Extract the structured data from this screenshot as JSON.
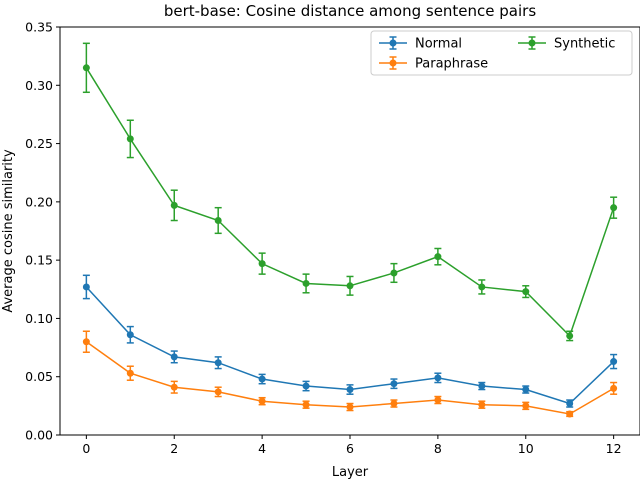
{
  "chart_data": {
    "type": "line",
    "title": "bert-base: Cosine distance among sentence pairs",
    "xlabel": "Layer",
    "ylabel": "Average cosine similarity",
    "xlim": [
      -0.6,
      12.6
    ],
    "ylim": [
      0.0,
      0.35
    ],
    "xticks": [
      0,
      2,
      4,
      6,
      8,
      10,
      12
    ],
    "xtick_labels": [
      "0",
      "2",
      "4",
      "6",
      "8",
      "10",
      "12"
    ],
    "yticks": [
      0.0,
      0.05,
      0.1,
      0.15,
      0.2,
      0.25,
      0.3,
      0.35
    ],
    "ytick_labels": [
      "0.00",
      "0.05",
      "0.10",
      "0.15",
      "0.20",
      "0.25",
      "0.30",
      "0.35"
    ],
    "grid": false,
    "legend": {
      "placement": "top-right",
      "columns": 2
    },
    "x": [
      0,
      1,
      2,
      3,
      4,
      5,
      6,
      7,
      8,
      9,
      10,
      11,
      12
    ],
    "series": [
      {
        "name": "Normal",
        "color": "#1f77b4",
        "values": [
          0.127,
          0.086,
          0.067,
          0.062,
          0.048,
          0.042,
          0.039,
          0.044,
          0.049,
          0.042,
          0.039,
          0.027,
          0.063
        ],
        "errors": [
          0.01,
          0.007,
          0.005,
          0.005,
          0.004,
          0.004,
          0.004,
          0.004,
          0.004,
          0.003,
          0.003,
          0.003,
          0.006
        ]
      },
      {
        "name": "Paraphrase",
        "color": "#ff7f0e",
        "values": [
          0.08,
          0.053,
          0.041,
          0.037,
          0.029,
          0.026,
          0.024,
          0.027,
          0.03,
          0.026,
          0.025,
          0.018,
          0.04
        ],
        "errors": [
          0.009,
          0.006,
          0.005,
          0.004,
          0.003,
          0.003,
          0.003,
          0.003,
          0.003,
          0.003,
          0.003,
          0.002,
          0.005
        ]
      },
      {
        "name": "Synthetic",
        "color": "#2ca02c",
        "values": [
          0.315,
          0.254,
          0.197,
          0.184,
          0.147,
          0.13,
          0.128,
          0.139,
          0.153,
          0.127,
          0.123,
          0.085,
          0.195
        ],
        "errors": [
          0.021,
          0.016,
          0.013,
          0.011,
          0.009,
          0.008,
          0.008,
          0.008,
          0.007,
          0.006,
          0.005,
          0.004,
          0.009
        ]
      }
    ]
  }
}
